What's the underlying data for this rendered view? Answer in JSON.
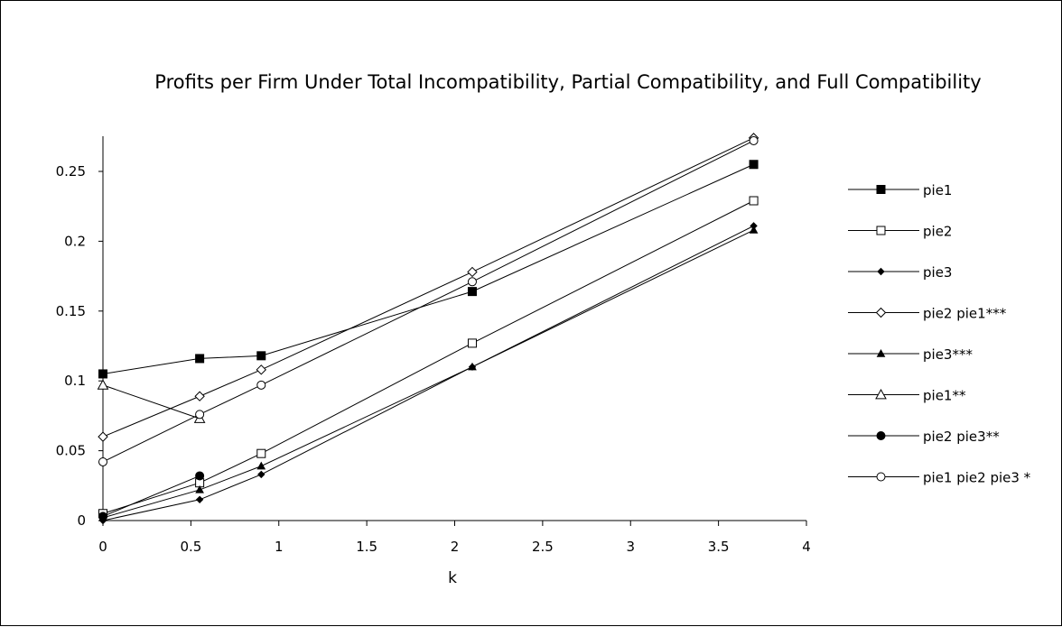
{
  "chart_data": {
    "type": "line",
    "title": "Profits per Firm Under Total Incompatibility, Partial Compatibility, and Full Compatibility",
    "xlabel": "k",
    "ylabel": "",
    "xlim": [
      0,
      4
    ],
    "ylim": [
      0,
      0.25
    ],
    "xticks": [
      "0",
      "0.5",
      "1",
      "1.5",
      "2",
      "2.5",
      "3",
      "3.5",
      "4"
    ],
    "yticks": [
      "0",
      "0.05",
      "0.1",
      "0.15",
      "0.2",
      "0.25"
    ],
    "grid": false,
    "legend": "right",
    "series": [
      {
        "name": "pie1",
        "marker": "square-filled",
        "points": [
          [
            0,
            0.105
          ],
          [
            0.55,
            0.116
          ],
          [
            0.9,
            0.118
          ],
          [
            2.1,
            0.164
          ],
          [
            3.7,
            0.255
          ]
        ]
      },
      {
        "name": "pie2",
        "marker": "square-open",
        "points": [
          [
            0,
            0.005
          ],
          [
            0.55,
            0.027
          ],
          [
            0.9,
            0.048
          ],
          [
            2.1,
            0.127
          ],
          [
            3.7,
            0.229
          ]
        ]
      },
      {
        "name": "pie3",
        "marker": "diamond-filled",
        "points": [
          [
            0,
            0.0
          ],
          [
            0.55,
            0.015
          ],
          [
            0.9,
            0.033
          ],
          [
            2.1,
            0.11
          ],
          [
            3.7,
            0.211
          ]
        ]
      },
      {
        "name": "pie2 pie1***",
        "marker": "diamond-open",
        "points": [
          [
            0,
            0.06
          ],
          [
            0.55,
            0.089
          ],
          [
            0.9,
            0.108
          ],
          [
            2.1,
            0.178
          ],
          [
            3.7,
            0.274
          ]
        ]
      },
      {
        "name": "pie3***",
        "marker": "triangle-filled",
        "points": [
          [
            0,
            0.002
          ],
          [
            0.55,
            0.022
          ],
          [
            0.9,
            0.039
          ],
          [
            2.1,
            0.11
          ],
          [
            3.7,
            0.208
          ]
        ]
      },
      {
        "name": "pie1**",
        "marker": "triangle-open",
        "points": [
          [
            0,
            0.097
          ],
          [
            0.55,
            0.073
          ]
        ]
      },
      {
        "name": "pie2 pie3**",
        "marker": "circle-filled",
        "points": [
          [
            0,
            0.003
          ],
          [
            0.55,
            0.032
          ]
        ]
      },
      {
        "name": "pie1 pie2 pie3 *",
        "marker": "circle-open",
        "points": [
          [
            0,
            0.042
          ],
          [
            0.55,
            0.076
          ],
          [
            0.9,
            0.097
          ],
          [
            2.1,
            0.171
          ],
          [
            3.7,
            0.272
          ]
        ]
      }
    ]
  }
}
